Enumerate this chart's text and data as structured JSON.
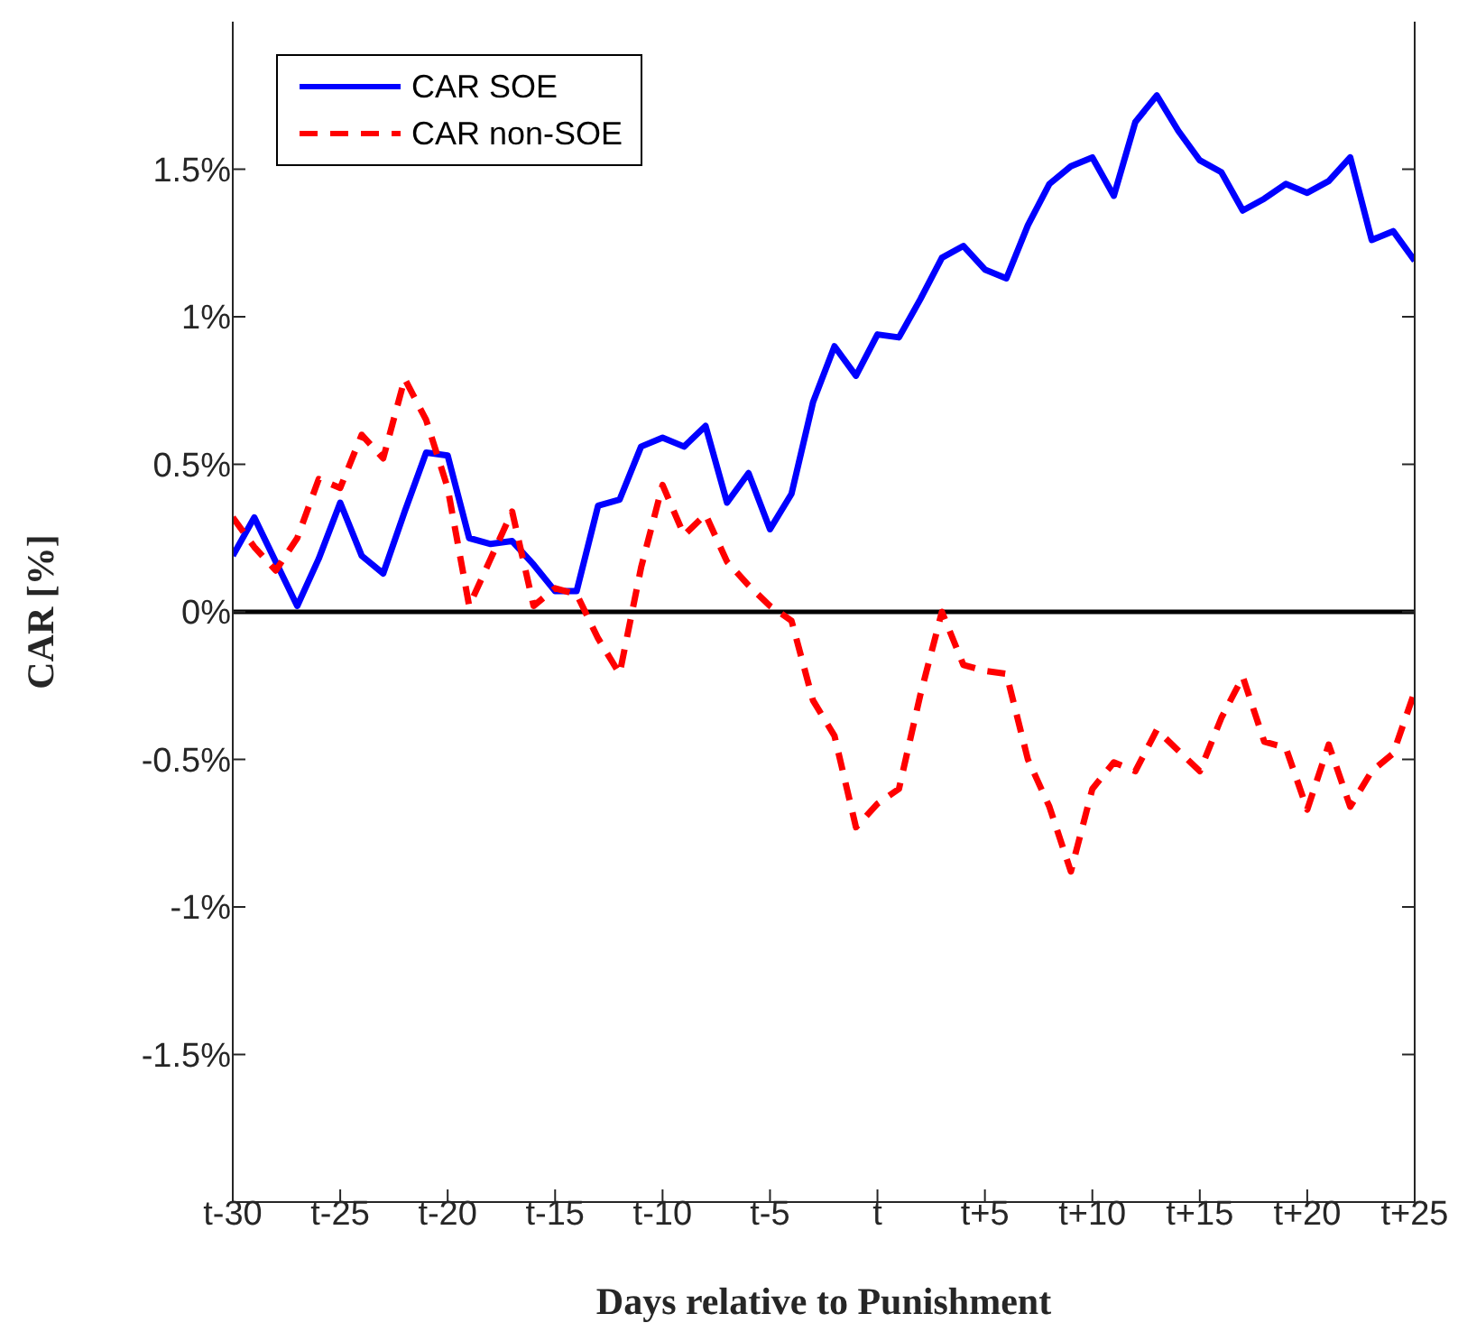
{
  "chart_data": {
    "type": "line",
    "xlabel": "Days relative to Punishment",
    "ylabel": "CAR [%]",
    "categories": [
      "t-30",
      null,
      null,
      null,
      null,
      "t-25",
      null,
      null,
      null,
      null,
      "t-20",
      null,
      null,
      null,
      null,
      "t-15",
      null,
      null,
      null,
      null,
      "t-10",
      null,
      null,
      null,
      null,
      "t-5",
      null,
      null,
      null,
      null,
      "t",
      null,
      null,
      null,
      null,
      "t+5",
      null,
      null,
      null,
      null,
      "t+10",
      null,
      null,
      null,
      null,
      "t+15",
      null,
      null,
      null,
      null,
      "t+20",
      null,
      null,
      null,
      null,
      "t+25"
    ],
    "series": [
      {
        "name": "CAR SOE",
        "color": "#0000ff",
        "line_style": "solid",
        "values": [
          0.19,
          0.32,
          0.17,
          0.02,
          0.18,
          0.37,
          0.19,
          0.13,
          0.34,
          0.54,
          0.53,
          0.25,
          0.23,
          0.24,
          0.16,
          0.07,
          0.07,
          0.36,
          0.38,
          0.56,
          0.59,
          0.56,
          0.63,
          0.37,
          0.47,
          0.28,
          0.4,
          0.71,
          0.9,
          0.8,
          0.94,
          0.93,
          1.06,
          1.2,
          1.24,
          1.16,
          1.13,
          1.31,
          1.45,
          1.51,
          1.54,
          1.41,
          1.66,
          1.75,
          1.63,
          1.53,
          1.49,
          1.36,
          1.4,
          1.45,
          1.42,
          1.46,
          1.54,
          1.26,
          1.29,
          1.19
        ]
      },
      {
        "name": "CAR non-SOE",
        "color": "#ff0000",
        "line_style": "dashed",
        "values": [
          0.32,
          0.22,
          0.14,
          0.25,
          0.45,
          0.42,
          0.6,
          0.52,
          0.79,
          0.65,
          0.42,
          0.02,
          0.18,
          0.34,
          0.02,
          0.08,
          0.06,
          -0.09,
          -0.21,
          0.15,
          0.43,
          0.26,
          0.33,
          0.17,
          0.09,
          0.02,
          -0.03,
          -0.3,
          -0.42,
          -0.73,
          -0.65,
          -0.6,
          -0.28,
          0.0,
          -0.18,
          -0.2,
          -0.21,
          -0.5,
          -0.66,
          -0.88,
          -0.6,
          -0.51,
          -0.54,
          -0.4,
          -0.47,
          -0.54,
          -0.36,
          -0.22,
          -0.44,
          -0.46,
          -0.67,
          -0.45,
          -0.66,
          -0.54,
          -0.48,
          -0.27
        ]
      }
    ],
    "ylim": [
      -2,
      2
    ],
    "yticks": [
      {
        "value": -1.5,
        "label": "-1.5%"
      },
      {
        "value": -1,
        "label": "-1%"
      },
      {
        "value": -0.5,
        "label": "-0.5%"
      },
      {
        "value": 0,
        "label": "0%"
      },
      {
        "value": 0.5,
        "label": "0.5%"
      },
      {
        "value": 1,
        "label": "1%"
      },
      {
        "value": 1.5,
        "label": "1.5%"
      }
    ],
    "ref_lines": [
      {
        "axis": "y",
        "value": 0,
        "color": "#000000",
        "line_style": "solid"
      }
    ],
    "legend": "top left",
    "marker": "none"
  }
}
